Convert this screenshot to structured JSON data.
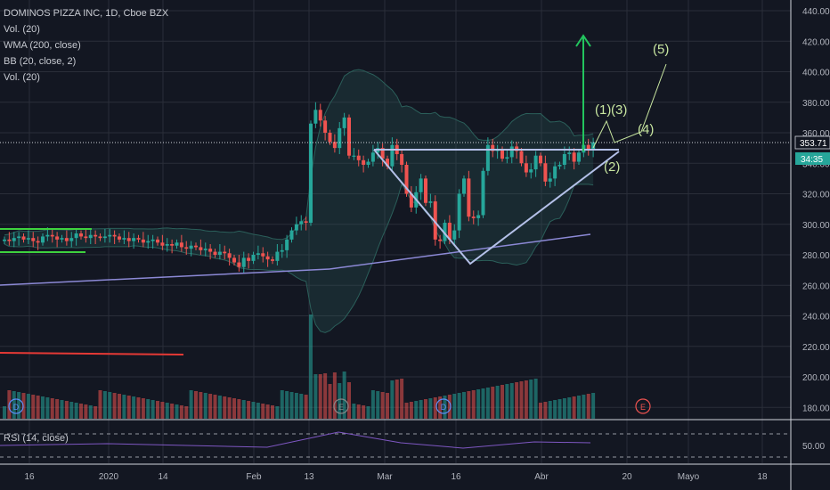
{
  "header": {
    "title": "DOMINOS PIZZA INC, 1D, Cboe BZX",
    "indicators": [
      "Vol. (20)",
      "WMA (200, close)",
      "BB (20, close, 2)",
      "Vol. (20)"
    ]
  },
  "rsi_label": "RSI (14, close)",
  "price_axis": {
    "ticks": [
      "440.00",
      "420.00",
      "400.00",
      "380.00",
      "360.00",
      "340.00",
      "320.00",
      "300.00",
      "280.00",
      "260.00",
      "240.00",
      "220.00",
      "200.00",
      "180.00"
    ],
    "last_price": "353.71",
    "countdown": "34:35"
  },
  "rsi_axis": {
    "ticks": [
      "50.00"
    ]
  },
  "time_axis": {
    "ticks": [
      "16",
      "2020",
      "14",
      "Feb",
      "13",
      "Mar",
      "16",
      "Abr",
      "20",
      "Mayo",
      "18"
    ]
  },
  "wave_labels": [
    "(1)",
    "(3)",
    "(5)",
    "(4)",
    "(2)"
  ],
  "event_markers": [
    "D",
    "E",
    "D",
    "E"
  ],
  "colors": {
    "background": "#131722",
    "grid": "#2a2e39",
    "up": "#26a69a",
    "down": "#ef5350",
    "wma": "#8c89d6",
    "bb": "#2b5f5a",
    "pattern": "#b4c0e8",
    "arrow": "#22c55e",
    "wave": "#c8e6a0",
    "support": "#e53935",
    "box": "#3ed13e"
  },
  "chart_data": {
    "type": "candlestick",
    "title": "DOMINOS PIZZA INC, 1D, Cboe BZX",
    "ylim": [
      170,
      445
    ],
    "last_price": 353.71,
    "x_tick_labels": [
      "16",
      "2020",
      "14",
      "Feb",
      "13",
      "Mar",
      "16",
      "Abr",
      "20",
      "Mayo",
      "18"
    ],
    "y_tick_values": [
      440,
      420,
      400,
      380,
      360,
      340,
      320,
      300,
      280,
      260,
      240,
      220,
      200,
      180
    ],
    "series": [
      {
        "name": "price",
        "kind": "candles",
        "close": [
          290,
          289,
          291,
          292,
          290,
          291,
          289,
          288,
          292,
          293,
          292,
          290,
          291,
          289,
          291,
          294,
          292,
          291,
          293,
          292,
          291,
          292,
          293,
          292,
          290,
          291,
          289,
          291,
          290,
          288,
          289,
          290,
          288,
          286,
          287,
          286,
          288,
          285,
          284,
          286,
          285,
          283,
          284,
          282,
          280,
          282,
          281,
          278,
          275,
          272,
          278,
          276,
          280,
          281,
          279,
          277,
          276,
          282,
          283,
          290,
          296,
          300,
          302,
          301,
          366,
          375,
          368,
          360,
          354,
          350,
          363,
          370,
          345,
          345,
          342,
          339,
          341,
          347,
          350,
          343,
          338,
          352,
          346,
          339,
          320,
          311,
          321,
          330,
          314,
          315,
          290,
          289,
          301,
          290,
          296,
          320,
          330,
          305,
          304,
          306,
          335,
          352,
          348,
          349,
          343,
          344,
          351,
          348,
          340,
          334,
          336,
          345,
          340,
          328,
          330,
          338,
          339,
          346,
          347,
          341,
          347,
          352,
          349,
          353.7
        ]
      },
      {
        "name": "WMA (200, close)",
        "kind": "line"
      },
      {
        "name": "BB (20, close, 2)",
        "kind": "band"
      }
    ],
    "volume_scale": "relative",
    "annotations": {
      "triangle_apex_price": 275,
      "triangle_top_price": 350,
      "target_arrow_from": 353,
      "target_arrow_to": 419,
      "waves": [
        "(1)",
        "(2)",
        "(3)",
        "(4)",
        "(5)"
      ]
    }
  }
}
